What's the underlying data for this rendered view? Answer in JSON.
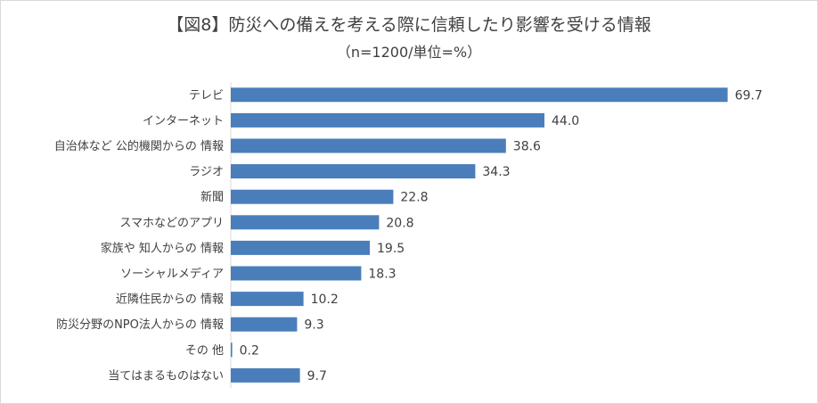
{
  "chart_data": {
    "type": "bar",
    "orientation": "horizontal",
    "title": "【図8】防災への備えを考える際に信頼したり影響を受ける情報",
    "subtitle": "（n=1200/単位=%）",
    "categories": [
      "テレビ",
      "インターネット",
      "自治体など 公的機関からの 情報",
      "ラジオ",
      "新聞",
      "スマホなどのアプリ",
      "家族や 知人からの 情報",
      "ソーシャルメディア",
      "近隣住民からの 情報",
      "防災分野のNPO法人からの 情報",
      "その 他",
      "当てはまるものはない"
    ],
    "values": [
      69.7,
      44.0,
      38.6,
      34.3,
      22.8,
      20.8,
      19.5,
      18.3,
      10.2,
      9.3,
      0.2,
      9.7
    ],
    "value_labels": [
      "69.7",
      "44.0",
      "38.6",
      "34.3",
      "22.8",
      "20.8",
      "19.5",
      "18.3",
      "10.2",
      "9.3",
      "0.2",
      "9.7"
    ],
    "xlim": [
      0,
      70
    ],
    "grid": false,
    "legend": "none",
    "bar_color": "#4a7ebb"
  }
}
